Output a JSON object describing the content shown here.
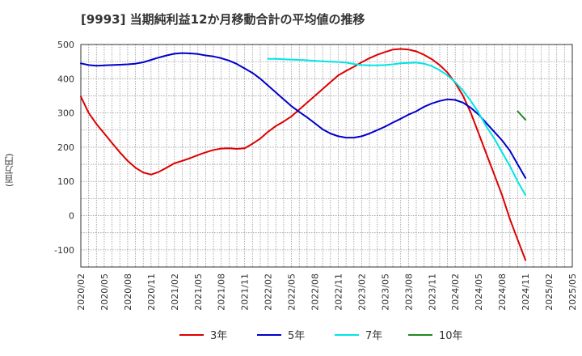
{
  "chart_data": {
    "type": "line",
    "title": "[9993]  当期純利益12か月移動合計の平均値の推移",
    "ylabel": "(百万円)",
    "xlabel": "",
    "ylim": [
      -150,
      500
    ],
    "yticks": [
      500,
      400,
      300,
      200,
      100,
      0,
      -100
    ],
    "x_start": "2020-02",
    "xticks": [
      "2020/02",
      "2020/05",
      "2020/08",
      "2020/11",
      "2021/02",
      "2021/05",
      "2021/08",
      "2021/11",
      "2022/02",
      "2022/05",
      "2022/08",
      "2022/11",
      "2023/02",
      "2023/05",
      "2023/08",
      "2023/11",
      "2024/02",
      "2024/05",
      "2024/08",
      "2024/11",
      "2025/02",
      "2025/05"
    ],
    "grid": true,
    "legend_position": "bottom",
    "series": [
      {
        "name": "3年",
        "color": "#dd0000",
        "start_month_index": 0,
        "values": [
          348,
          300,
          268,
          240,
          212,
          185,
          160,
          140,
          126,
          120,
          128,
          140,
          153,
          160,
          168,
          177,
          185,
          192,
          196,
          197,
          195,
          197,
          210,
          225,
          245,
          262,
          275,
          290,
          310,
          330,
          350,
          370,
          390,
          410,
          423,
          435,
          448,
          460,
          470,
          478,
          485,
          487,
          485,
          480,
          470,
          457,
          440,
          418,
          388,
          350,
          300,
          240,
          180,
          120,
          60,
          -10,
          -70,
          -130
        ]
      },
      {
        "name": "5年",
        "color": "#0000cc",
        "start_month_index": 0,
        "values": [
          445,
          440,
          438,
          439,
          440,
          441,
          442,
          444,
          448,
          455,
          462,
          468,
          473,
          475,
          474,
          472,
          468,
          465,
          460,
          453,
          443,
          430,
          417,
          400,
          380,
          360,
          340,
          320,
          303,
          287,
          270,
          252,
          240,
          232,
          228,
          228,
          232,
          240,
          250,
          260,
          272,
          283,
          295,
          305,
          318,
          328,
          335,
          340,
          338,
          330,
          315,
          295,
          270,
          245,
          220,
          190,
          150,
          110
        ]
      },
      {
        "name": "7年",
        "color": "#00e5e5",
        "start_month_index": 24,
        "values": [
          458,
          458,
          457,
          456,
          455,
          454,
          452,
          451,
          450,
          449,
          447,
          443,
          440,
          439,
          439,
          440,
          442,
          445,
          446,
          447,
          444,
          437,
          425,
          410,
          390,
          365,
          335,
          300,
          260,
          225,
          185,
          145,
          100,
          60
        ]
      },
      {
        "name": "10年",
        "color": "#228822",
        "start_month_index": 56,
        "values": [
          305,
          280
        ]
      }
    ]
  }
}
